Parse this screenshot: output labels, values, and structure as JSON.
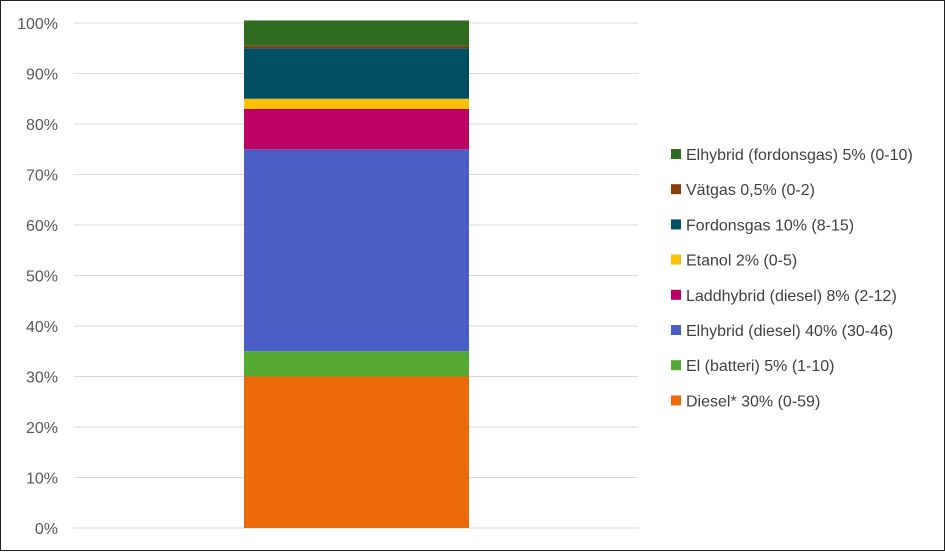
{
  "chart_data": {
    "type": "bar",
    "stacked": true,
    "categories": [
      ""
    ],
    "ylim": [
      0,
      100
    ],
    "yticks": [
      "0%",
      "10%",
      "20%",
      "30%",
      "40%",
      "50%",
      "60%",
      "70%",
      "80%",
      "90%",
      "100%"
    ],
    "grid": true,
    "legend_position": "right",
    "series": [
      {
        "name": "Diesel* 30% (0-59)",
        "values": [
          30
        ],
        "color": "#ED6A0A"
      },
      {
        "name": "El (batteri) 5% (1-10)",
        "values": [
          5
        ],
        "color": "#55AA33"
      },
      {
        "name": "Elhybrid (diesel) 40% (30-46)",
        "values": [
          40
        ],
        "color": "#4B5EC6"
      },
      {
        "name": "Laddhybrid (diesel) 8% (2-12)",
        "values": [
          8
        ],
        "color": "#BC0064"
      },
      {
        "name": "Etanol 2% (0-5)",
        "values": [
          2
        ],
        "color": "#FFC000"
      },
      {
        "name": "Fordonsgas 10% (8-15)",
        "values": [
          10
        ],
        "color": "#004F63"
      },
      {
        "name": "Vätgas 0,5% (0-2)",
        "values": [
          0.5
        ],
        "color": "#8B3C0B"
      },
      {
        "name": "Elhybrid (fordonsgas) 5% (0-10)",
        "values": [
          5
        ],
        "color": "#2E6B1E"
      }
    ]
  }
}
